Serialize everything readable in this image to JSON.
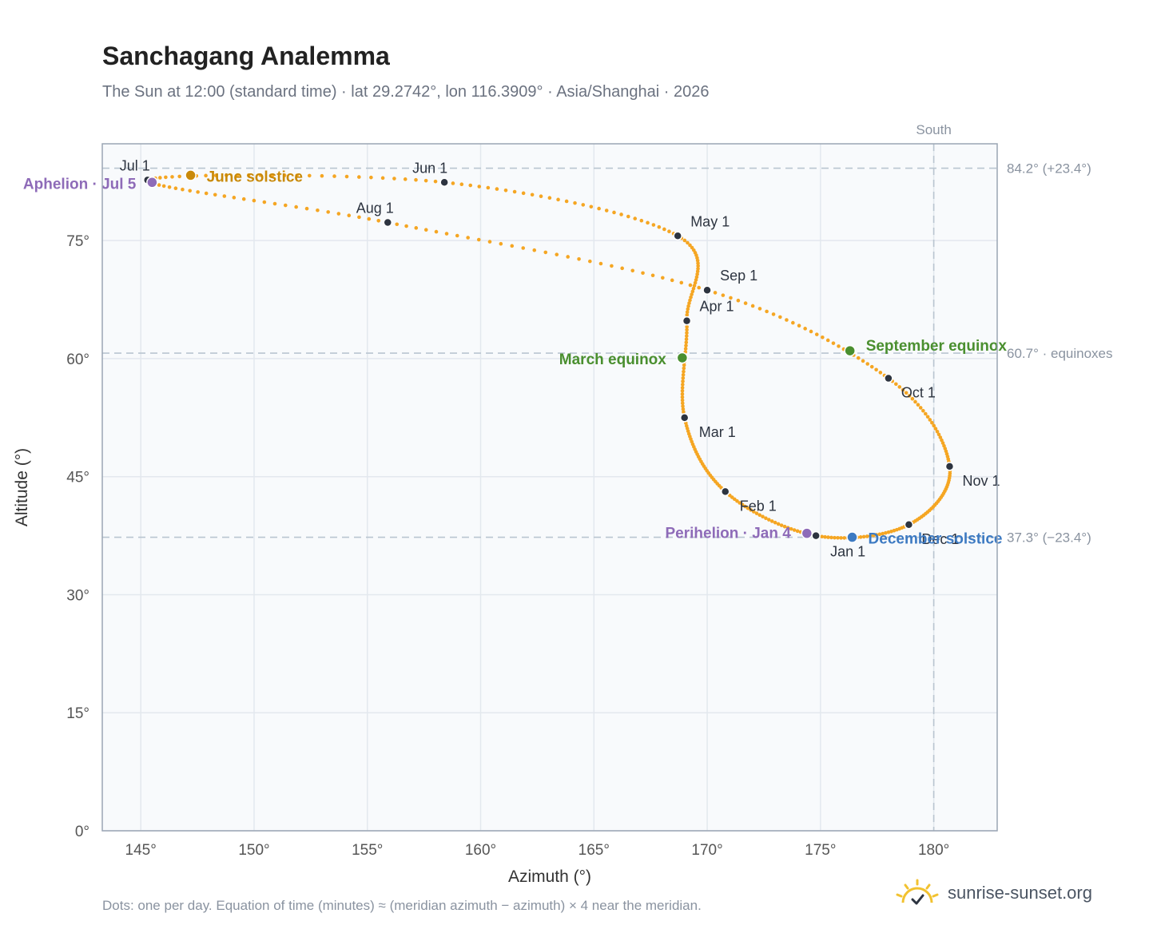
{
  "header": {
    "title": "Sanchagang Analemma",
    "subtitle": "The Sun at 12:00 (standard time) · lat 29.2742°, lon 116.3909° · Asia/Shanghai · 2026"
  },
  "footer": {
    "note": "Dots: one per day. Equation of time (minutes) ≈ (meridian azimuth − azimuth) × 4 near the meridian.",
    "brand": "sunrise-sunset.org",
    "brand_icon": "sunrise-logo-icon"
  },
  "colors": {
    "curve": "#f5a623",
    "month_marker": "#2d3440",
    "solstice_june": "#c98a0a",
    "equinox": "#4a8f2f",
    "december_solstice": "#3d7ac2",
    "apsis": "#8e6bb8",
    "plot_bg": "#f8fafc",
    "ref_line": "#b9c5d0"
  },
  "chart_data": {
    "type": "scatter",
    "xlabel": "Azimuth (°)",
    "ylabel": "Altitude (°)",
    "xlim": [
      143.3,
      182.8
    ],
    "ylim": [
      0,
      87.3
    ],
    "xticks": [
      145,
      150,
      155,
      160,
      165,
      170,
      175,
      180
    ],
    "xtick_labels": [
      "145°",
      "150°",
      "155°",
      "160°",
      "165°",
      "170°",
      "175°",
      "180°"
    ],
    "yticks": [
      0,
      15,
      30,
      45,
      60,
      75
    ],
    "ytick_labels": [
      "0°",
      "15°",
      "30°",
      "45°",
      "60°",
      "75°"
    ],
    "grid": true,
    "reference_lines": {
      "vertical": [
        {
          "x": 180,
          "label": "South"
        }
      ],
      "horizontal": [
        {
          "y": 84.2,
          "label": "84.2° (+23.4°)"
        },
        {
          "y": 60.7,
          "label": "60.7° · equinoxes"
        },
        {
          "y": 37.3,
          "label": "37.3° (−23.4°)"
        }
      ]
    },
    "month_markers": [
      {
        "label": "Jan 1",
        "az": 174.8,
        "alt": 37.5
      },
      {
        "label": "Feb 1",
        "az": 170.8,
        "alt": 43.1
      },
      {
        "label": "Mar 1",
        "az": 169.0,
        "alt": 52.5
      },
      {
        "label": "Apr 1",
        "az": 169.1,
        "alt": 64.8
      },
      {
        "label": "May 1",
        "az": 168.7,
        "alt": 75.6
      },
      {
        "label": "Jun 1",
        "az": 158.4,
        "alt": 82.4
      },
      {
        "label": "Jul 1",
        "az": 145.3,
        "alt": 82.7
      },
      {
        "label": "Aug 1",
        "az": 155.9,
        "alt": 77.3
      },
      {
        "label": "Sep 1",
        "az": 170.0,
        "alt": 68.7
      },
      {
        "label": "Oct 1",
        "az": 178.0,
        "alt": 57.5
      },
      {
        "label": "Nov 1",
        "az": 180.7,
        "alt": 46.3
      },
      {
        "label": "Dec 1",
        "az": 178.9,
        "alt": 38.9
      }
    ],
    "events": [
      {
        "label": "June solstice",
        "az": 147.2,
        "alt": 83.3
      },
      {
        "label": "Aphelion · Jul 5",
        "az": 145.5,
        "alt": 82.4
      },
      {
        "label": "March equinox",
        "az": 168.9,
        "alt": 60.1
      },
      {
        "label": "September equinox",
        "az": 176.3,
        "alt": 61.0
      },
      {
        "label": "Perihelion · Jan 4",
        "az": 174.4,
        "alt": 37.8
      },
      {
        "label": "December solstice",
        "az": 176.4,
        "alt": 37.3
      }
    ]
  }
}
